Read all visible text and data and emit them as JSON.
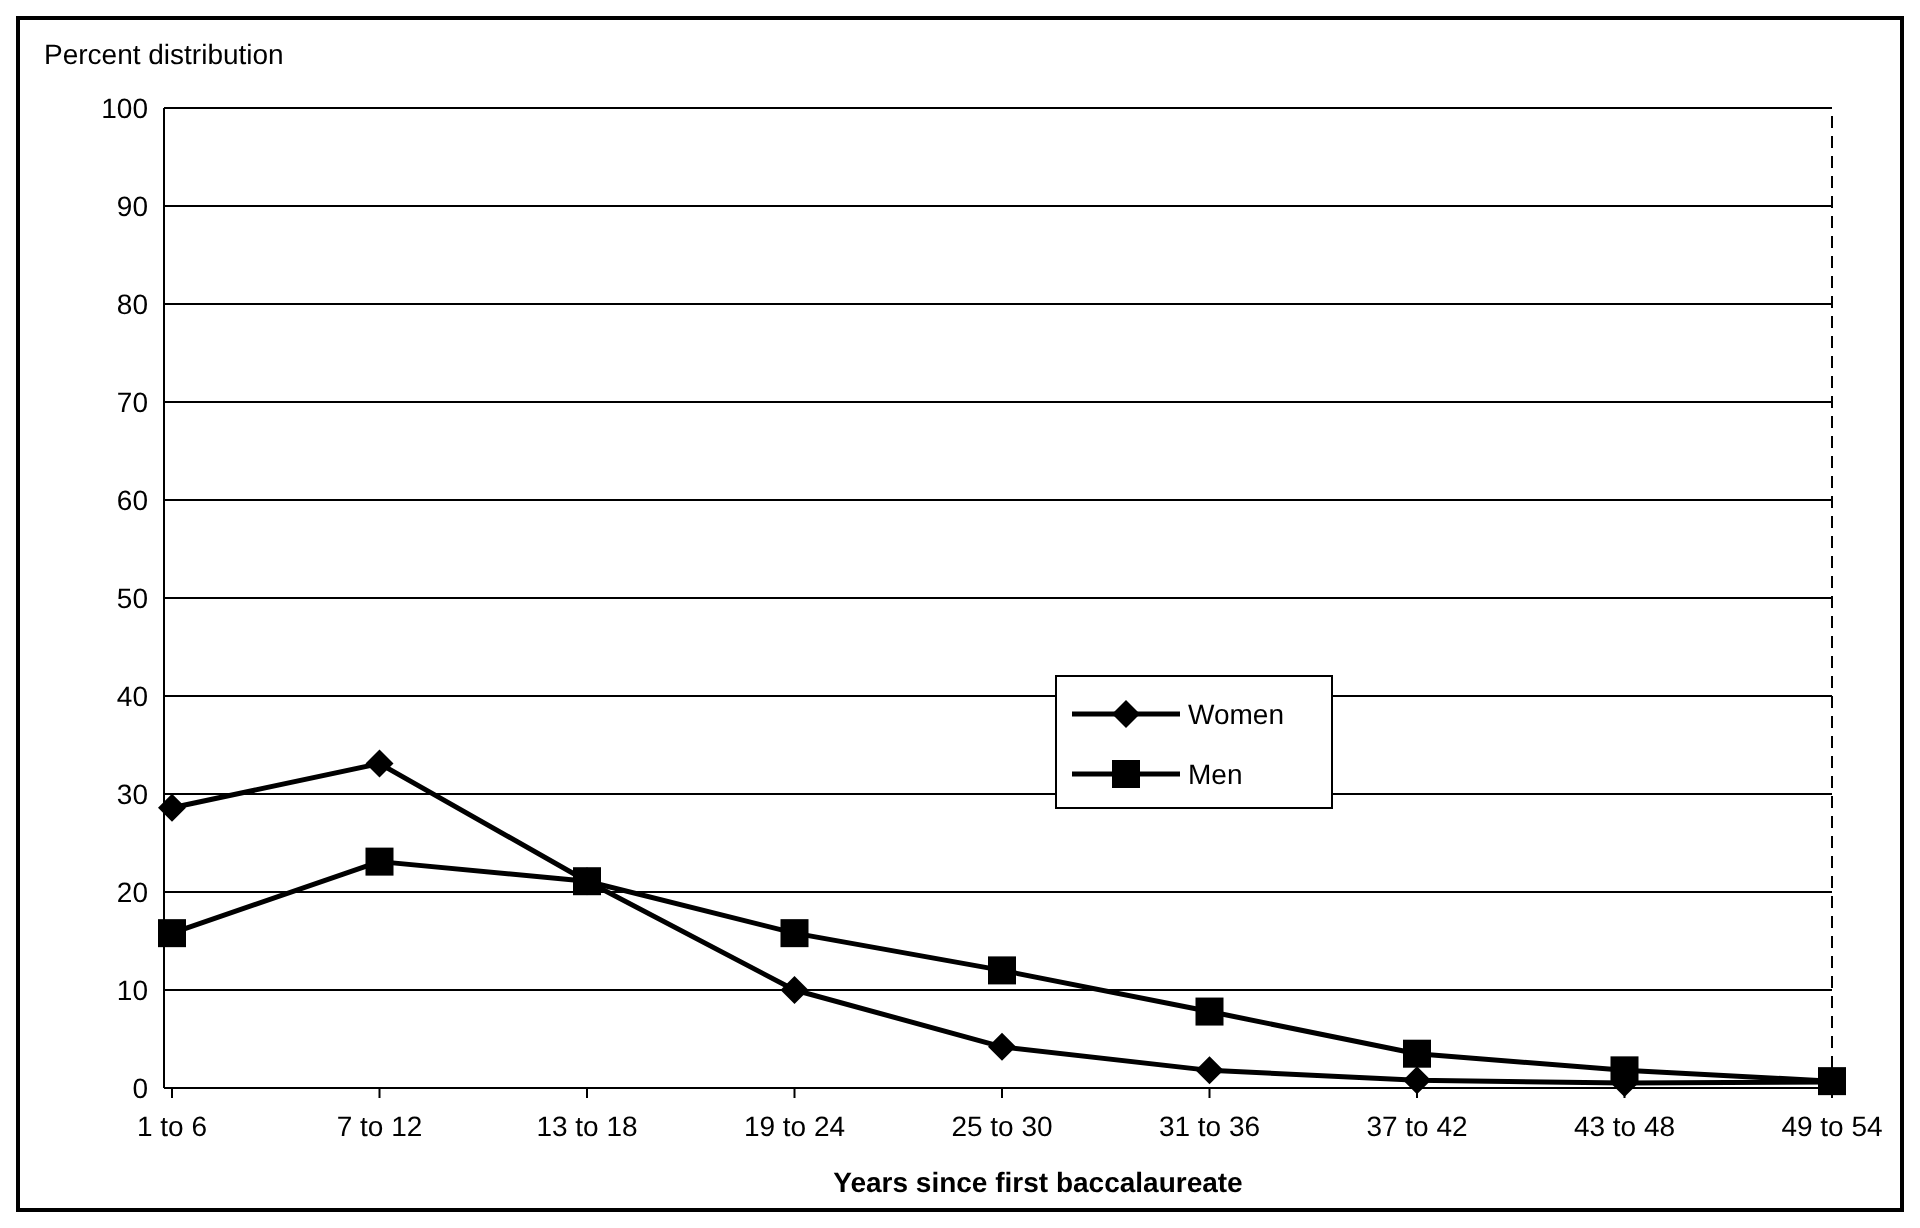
{
  "chart_data": {
    "type": "line",
    "ylabel": "Percent distribution",
    "xlabel": "Years since first baccalaureate",
    "categories": [
      "1 to 6",
      "7 to 12",
      "13 to 18",
      "19 to 24",
      "25 to 30",
      "31 to 36",
      "37 to 42",
      "43 to 48",
      "49 to 54"
    ],
    "series": [
      {
        "name": "Women",
        "color": "#000000",
        "marker": "diamond",
        "values": [
          28.6,
          33.1,
          21.1,
          10,
          4.2,
          1.8,
          0.8,
          0.5,
          0.6
        ]
      },
      {
        "name": "Men",
        "color": "#000000",
        "marker": "square",
        "values": [
          15.8,
          23.1,
          21.1,
          15.8,
          12,
          7.8,
          3.5,
          1.8,
          0.7
        ]
      }
    ],
    "ylim": [
      0,
      100
    ],
    "yticks": [
      0,
      10,
      20,
      30,
      40,
      50,
      60,
      70,
      80,
      90,
      100
    ],
    "grid": "y",
    "legend": "center",
    "line_style": "solid"
  }
}
